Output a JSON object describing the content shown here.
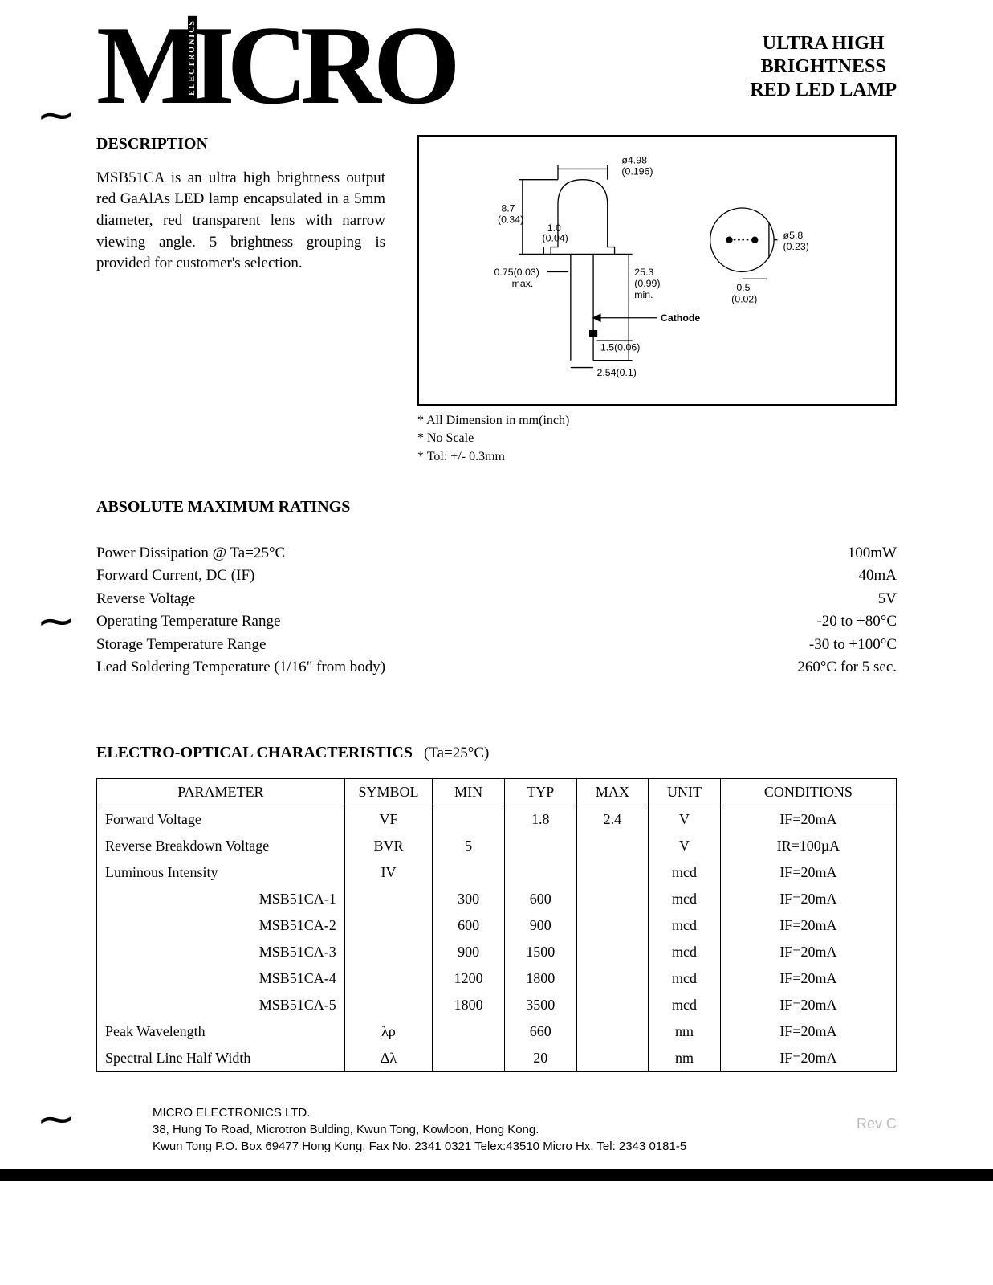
{
  "logo": {
    "letters": "MICRO",
    "vertical": "ELECTRONICS"
  },
  "product_title": {
    "l1": "ULTRA HIGH",
    "l2": "BRIGHTNESS",
    "l3": "RED LED LAMP"
  },
  "description": {
    "heading": "DESCRIPTION",
    "text": "MSB51CA is an ultra high brightness output red GaAlAs LED lamp encapsulated in a 5mm diameter, red transparent lens with narrow viewing angle. 5 brightness grouping is provided for customer's selection."
  },
  "diagram": {
    "dims": {
      "top_dia": "ø4.98",
      "top_dia_in": "(0.196)",
      "height": "8.7",
      "height_in": "(0.34)",
      "ledge": "1.0",
      "ledge_in": "(0.04)",
      "lead_sq": "0.75(0.03)",
      "lead_sq_note": "max.",
      "lead_len": "25.3",
      "lead_len_in": "(0.99)",
      "lead_len_note": "min.",
      "cathode": "Cathode",
      "stop": "1.5(0.06)",
      "pitch": "2.54(0.1)",
      "side_dia": "ø5.8",
      "side_dia_in": "(0.23)",
      "flat": "0.5",
      "flat_in": "(0.02)"
    },
    "notes": {
      "n1": "All Dimension in mm(inch)",
      "n2": "No Scale",
      "n3": "Tol: +/- 0.3mm"
    }
  },
  "ratings": {
    "heading": "ABSOLUTE MAXIMUM RATINGS",
    "rows": [
      {
        "label": "Power Dissipation @ Ta=25°C",
        "value": "100mW"
      },
      {
        "label": "Forward Current, DC (IF)",
        "value": "40mA"
      },
      {
        "label": "Reverse Voltage",
        "value": "5V"
      },
      {
        "label": "Operating Temperature Range",
        "value": "-20 to +80°C"
      },
      {
        "label": "Storage Temperature Range",
        "value": "-30 to +100°C"
      },
      {
        "label": "Lead Soldering Temperature (1/16\" from body)",
        "value": "260°C for 5 sec."
      }
    ]
  },
  "eo": {
    "heading": "ELECTRO-OPTICAL CHARACTERISTICS",
    "cond": "(Ta=25°C)",
    "columns": [
      "PARAMETER",
      "SYMBOL",
      "MIN",
      "TYP",
      "MAX",
      "UNIT",
      "CONDITIONS"
    ],
    "rows": [
      {
        "param": "Forward Voltage",
        "sub": "",
        "sym": "VF",
        "min": "",
        "typ": "1.8",
        "max": "2.4",
        "unit": "V",
        "cond": "IF=20mA"
      },
      {
        "param": "Reverse Breakdown Voltage",
        "sub": "",
        "sym": "BVR",
        "min": "5",
        "typ": "",
        "max": "",
        "unit": "V",
        "cond": "IR=100µA"
      },
      {
        "param": "Luminous Intensity",
        "sub": "",
        "sym": "IV",
        "min": "",
        "typ": "",
        "max": "",
        "unit": "mcd",
        "cond": "IF=20mA"
      },
      {
        "param": "",
        "sub": "MSB51CA-1",
        "sym": "",
        "min": "300",
        "typ": "600",
        "max": "",
        "unit": "mcd",
        "cond": "IF=20mA"
      },
      {
        "param": "",
        "sub": "MSB51CA-2",
        "sym": "",
        "min": "600",
        "typ": "900",
        "max": "",
        "unit": "mcd",
        "cond": "IF=20mA"
      },
      {
        "param": "",
        "sub": "MSB51CA-3",
        "sym": "",
        "min": "900",
        "typ": "1500",
        "max": "",
        "unit": "mcd",
        "cond": "IF=20mA"
      },
      {
        "param": "",
        "sub": "MSB51CA-4",
        "sym": "",
        "min": "1200",
        "typ": "1800",
        "max": "",
        "unit": "mcd",
        "cond": "IF=20mA"
      },
      {
        "param": "",
        "sub": "MSB51CA-5",
        "sym": "",
        "min": "1800",
        "typ": "3500",
        "max": "",
        "unit": "mcd",
        "cond": "IF=20mA"
      },
      {
        "param": "Peak Wavelength",
        "sub": "",
        "sym": "λρ",
        "min": "",
        "typ": "660",
        "max": "",
        "unit": "nm",
        "cond": "IF=20mA"
      },
      {
        "param": "Spectral Line Half Width",
        "sub": "",
        "sym": "Δλ",
        "min": "",
        "typ": "20",
        "max": "",
        "unit": "nm",
        "cond": "IF=20mA"
      }
    ]
  },
  "footer": {
    "company": "MICRO ELECTRONICS LTD.",
    "addr1": "38, Hung To Road, Microtron Bulding, Kwun Tong, Kowloon, Hong Kong.",
    "addr2": "Kwun Tong P.O. Box 69477 Hong Kong. Fax No. 2341 0321  Telex:43510 Micro Hx.  Tel: 2343 0181-5"
  },
  "rev": "Rev C",
  "colors": {
    "text": "#000000",
    "bg": "#ffffff",
    "faded": "#bbbbbb"
  }
}
